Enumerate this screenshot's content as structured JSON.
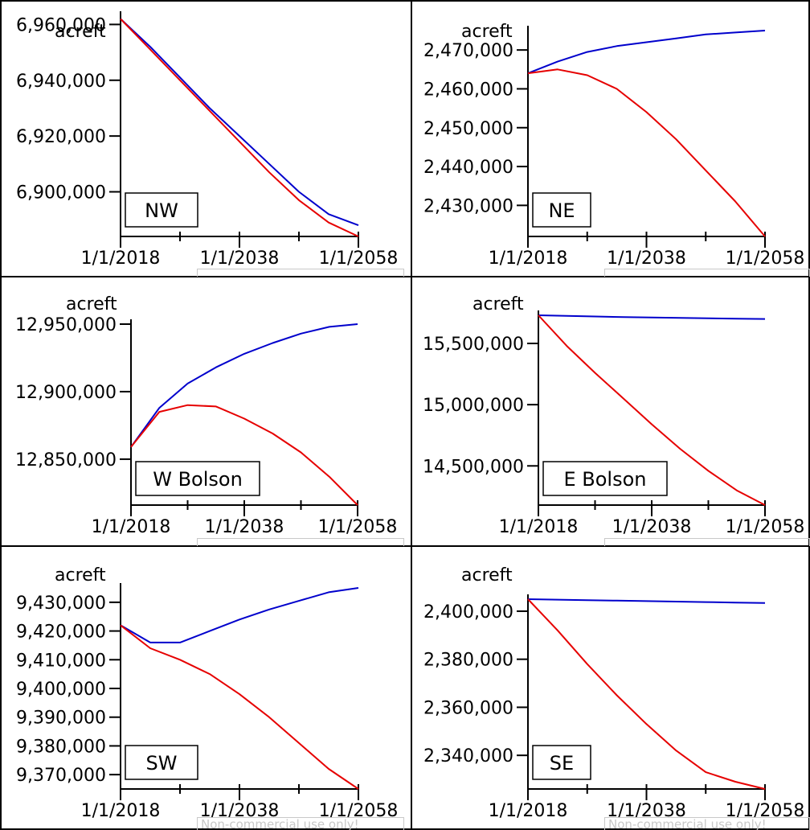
{
  "watermark": "Non-commercial use only!",
  "colors": {
    "series_a": "#0000cc",
    "series_b": "#e60000"
  },
  "chart_data": [
    {
      "type": "line",
      "title": "NW",
      "ylabel": "acreft",
      "x_ticks": [
        "1/1/2018",
        "1/1/2038",
        "1/1/2058"
      ],
      "xlim": [
        "1/1/2018",
        "1/1/2058"
      ],
      "ylim": [
        6884000,
        6963000
      ],
      "y_ticks": [
        6900000,
        6920000,
        6940000,
        6960000
      ],
      "y_tick_labels": [
        "6,900,000",
        "6,920,000",
        "6,940,000",
        "6,960,000"
      ],
      "x": [
        2018,
        2023,
        2028,
        2033,
        2038,
        2043,
        2048,
        2053,
        2058
      ],
      "series": [
        {
          "color": "#0000cc",
          "values": [
            6962000,
            6952000,
            6941000,
            6930000,
            6920000,
            6910000,
            6900000,
            6892000,
            6888000
          ]
        },
        {
          "color": "#e60000",
          "values": [
            6962000,
            6951000,
            6940000,
            6929000,
            6918000,
            6907000,
            6897000,
            6889000,
            6884000
          ]
        }
      ]
    },
    {
      "type": "line",
      "title": "NE",
      "ylabel": "acreft",
      "x_ticks": [
        "1/1/2018",
        "1/1/2038",
        "1/1/2058"
      ],
      "xlim": [
        "1/1/2018",
        "1/1/2058"
      ],
      "ylim": [
        2422000,
        2475000
      ],
      "y_ticks": [
        2430000,
        2440000,
        2450000,
        2460000,
        2470000
      ],
      "y_tick_labels": [
        "2,430,000",
        "2,440,000",
        "2,450,000",
        "2,460,000",
        "2,470,000"
      ],
      "x": [
        2018,
        2023,
        2028,
        2033,
        2038,
        2043,
        2048,
        2053,
        2058
      ],
      "series": [
        {
          "color": "#0000cc",
          "values": [
            2464000,
            2467000,
            2469500,
            2471000,
            2472000,
            2473000,
            2474000,
            2474500,
            2475000
          ]
        },
        {
          "color": "#e60000",
          "values": [
            2464000,
            2465000,
            2463500,
            2460000,
            2454000,
            2447000,
            2439000,
            2431000,
            2422000
          ]
        }
      ]
    },
    {
      "type": "line",
      "title": "W Bolson",
      "ylabel": "acreft",
      "x_ticks": [
        "1/1/2018",
        "1/1/2038",
        "1/1/2058"
      ],
      "xlim": [
        "1/1/2018",
        "1/1/2058"
      ],
      "ylim": [
        12816000,
        12950000
      ],
      "y_ticks": [
        12850000,
        12900000,
        12950000
      ],
      "y_tick_labels": [
        "12,850,000",
        "12,900,000",
        "12,950,000"
      ],
      "x": [
        2018,
        2023,
        2028,
        2033,
        2038,
        2043,
        2048,
        2053,
        2058
      ],
      "series": [
        {
          "color": "#0000cc",
          "values": [
            12859000,
            12888000,
            12906000,
            12918000,
            12928000,
            12936000,
            12943000,
            12948000,
            12950000
          ]
        },
        {
          "color": "#e60000",
          "values": [
            12859000,
            12885000,
            12890000,
            12889000,
            12880000,
            12869000,
            12855000,
            12837000,
            12816000
          ]
        }
      ]
    },
    {
      "type": "line",
      "title": "E Bolson",
      "ylabel": "acreft",
      "x_ticks": [
        "1/1/2018",
        "1/1/2038",
        "1/1/2058"
      ],
      "xlim": [
        "1/1/2018",
        "1/1/2058"
      ],
      "ylim": [
        14180000,
        15730000
      ],
      "y_ticks": [
        14500000,
        15000000,
        15500000
      ],
      "y_tick_labels": [
        "14,500,000",
        "15,000,000",
        "15,500,000"
      ],
      "x": [
        2018,
        2023,
        2028,
        2033,
        2038,
        2043,
        2048,
        2053,
        2058
      ],
      "series": [
        {
          "color": "#0000cc",
          "values": [
            15730000,
            15725000,
            15720000,
            15715000,
            15712000,
            15708000,
            15705000,
            15702000,
            15700000
          ]
        },
        {
          "color": "#e60000",
          "values": [
            15730000,
            15480000,
            15260000,
            15050000,
            14840000,
            14640000,
            14460000,
            14300000,
            14180000
          ]
        }
      ]
    },
    {
      "type": "line",
      "title": "SW",
      "ylabel": "acreft",
      "x_ticks": [
        "1/1/2018",
        "1/1/2038",
        "1/1/2058"
      ],
      "xlim": [
        "1/1/2018",
        "1/1/2058"
      ],
      "ylim": [
        9365000,
        9435000
      ],
      "y_ticks": [
        9370000,
        9380000,
        9390000,
        9400000,
        9410000,
        9420000,
        9430000
      ],
      "y_tick_labels": [
        "9,370,000",
        "9,380,000",
        "9,390,000",
        "9,400,000",
        "9,410,000",
        "9,420,000",
        "9,430,000"
      ],
      "x": [
        2018,
        2023,
        2028,
        2033,
        2038,
        2043,
        2048,
        2053,
        2058
      ],
      "series": [
        {
          "color": "#0000cc",
          "values": [
            9422000,
            9416000,
            9416000,
            9420000,
            9424000,
            9427500,
            9430500,
            9433500,
            9435000
          ]
        },
        {
          "color": "#e60000",
          "values": [
            9422000,
            9414000,
            9410000,
            9405000,
            9398000,
            9390000,
            9381000,
            9372000,
            9365000
          ]
        }
      ]
    },
    {
      "type": "line",
      "title": "SE",
      "ylabel": "acreft",
      "x_ticks": [
        "1/1/2018",
        "1/1/2038",
        "1/1/2058"
      ],
      "xlim": [
        "1/1/2018",
        "1/1/2058"
      ],
      "ylim": [
        2326000,
        2405000
      ],
      "y_ticks": [
        2340000,
        2360000,
        2380000,
        2400000
      ],
      "y_tick_labels": [
        "2,340,000",
        "2,360,000",
        "2,380,000",
        "2,400,000"
      ],
      "x": [
        2018,
        2023,
        2028,
        2033,
        2038,
        2043,
        2048,
        2053,
        2058
      ],
      "series": [
        {
          "color": "#0000cc",
          "values": [
            2405000,
            2404800,
            2404600,
            2404400,
            2404200,
            2404000,
            2403800,
            2403600,
            2403400
          ]
        },
        {
          "color": "#e60000",
          "values": [
            2405000,
            2392000,
            2378000,
            2365000,
            2353000,
            2342000,
            2333000,
            2329000,
            2326000
          ]
        }
      ]
    }
  ]
}
